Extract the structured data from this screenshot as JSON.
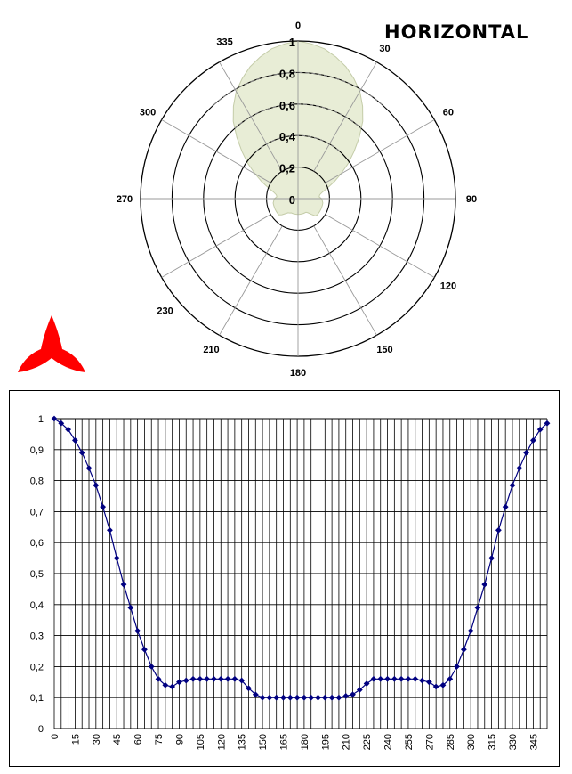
{
  "title": "HORIZONTAL",
  "colors": {
    "pattern_fill": "#E8EDD6",
    "pattern_stroke": "#C4CCA8",
    "line": "#000080",
    "logo": "#FF0000",
    "grid": "#000000"
  },
  "icons": {
    "logo": "red-three-lobed-logo-icon"
  },
  "chart_data": [
    {
      "type": "polar",
      "angular_labels": [
        "0",
        "30",
        "60",
        "90",
        "120",
        "150",
        "180",
        "210",
        "230",
        "270",
        "300",
        "335"
      ],
      "radial_labels": [
        "0",
        "0,2",
        "0,4",
        "0,6",
        "0,8",
        "1"
      ],
      "rlim": [
        0,
        1
      ],
      "series": [
        {
          "values_ref": "same as line chart y"
        }
      ]
    },
    {
      "type": "line",
      "x": [
        0,
        5,
        10,
        15,
        20,
        25,
        30,
        35,
        40,
        45,
        50,
        55,
        60,
        65,
        70,
        75,
        80,
        85,
        90,
        95,
        100,
        105,
        110,
        115,
        120,
        125,
        130,
        135,
        140,
        145,
        150,
        155,
        160,
        165,
        170,
        175,
        180,
        185,
        190,
        195,
        200,
        205,
        210,
        215,
        220,
        225,
        230,
        235,
        240,
        245,
        250,
        255,
        260,
        265,
        270,
        275,
        280,
        285,
        290,
        295,
        300,
        305,
        310,
        315,
        320,
        325,
        330,
        335,
        340,
        345,
        350,
        355
      ],
      "y": [
        1,
        0.985,
        0.965,
        0.93,
        0.89,
        0.84,
        0.785,
        0.715,
        0.64,
        0.55,
        0.465,
        0.39,
        0.315,
        0.255,
        0.2,
        0.16,
        0.14,
        0.135,
        0.15,
        0.155,
        0.16,
        0.16,
        0.16,
        0.16,
        0.16,
        0.16,
        0.16,
        0.155,
        0.13,
        0.11,
        0.1,
        0.1,
        0.1,
        0.1,
        0.1,
        0.1,
        0.1,
        0.1,
        0.1,
        0.1,
        0.1,
        0.1,
        0.105,
        0.11,
        0.125,
        0.145,
        0.16,
        0.16,
        0.16,
        0.16,
        0.16,
        0.16,
        0.16,
        0.155,
        0.15,
        0.135,
        0.14,
        0.16,
        0.2,
        0.255,
        0.315,
        0.39,
        0.465,
        0.55,
        0.64,
        0.715,
        0.785,
        0.84,
        0.89,
        0.93,
        0.965,
        0.985
      ],
      "x_tick_labels": [
        "0",
        "15",
        "30",
        "45",
        "60",
        "75",
        "90",
        "105",
        "120",
        "135",
        "150",
        "165",
        "180",
        "195",
        "210",
        "225",
        "240",
        "255",
        "270",
        "285",
        "300",
        "315",
        "330",
        "345"
      ],
      "y_tick_labels": [
        "0",
        "0,1",
        "0,2",
        "0,3",
        "0,4",
        "0,5",
        "0,6",
        "0,7",
        "0,8",
        "0,9",
        "1"
      ],
      "ylim": [
        0,
        1
      ],
      "xlim": [
        0,
        355
      ],
      "grid": true,
      "marker": "diamond"
    }
  ]
}
